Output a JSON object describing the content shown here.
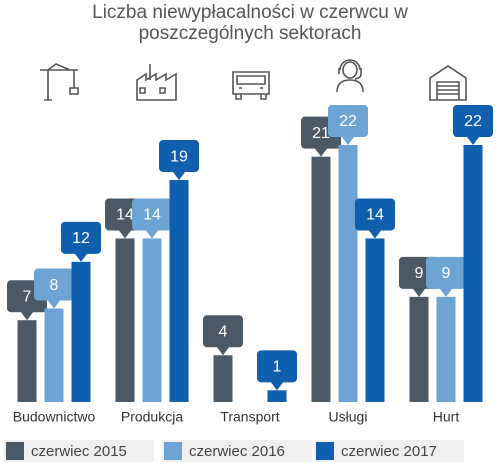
{
  "chart_data": {
    "type": "bar",
    "title": "Liczba niewypłacalności w czerwcu w poszczególnych sektorach",
    "categories": [
      "Budownictwo",
      "Produkcja",
      "Transport",
      "Usługi",
      "Hurt"
    ],
    "series": [
      {
        "name": "czerwiec 2015",
        "color": "#4b5966",
        "values": [
          7,
          14,
          4,
          21,
          9
        ]
      },
      {
        "name": "czerwiec 2016",
        "color": "#6ea4d3",
        "values": [
          8,
          14,
          null,
          22,
          9
        ]
      },
      {
        "name": "czerwiec 2017",
        "color": "#0f5fae",
        "values": [
          12,
          19,
          1,
          14,
          22
        ]
      }
    ]
  }
}
